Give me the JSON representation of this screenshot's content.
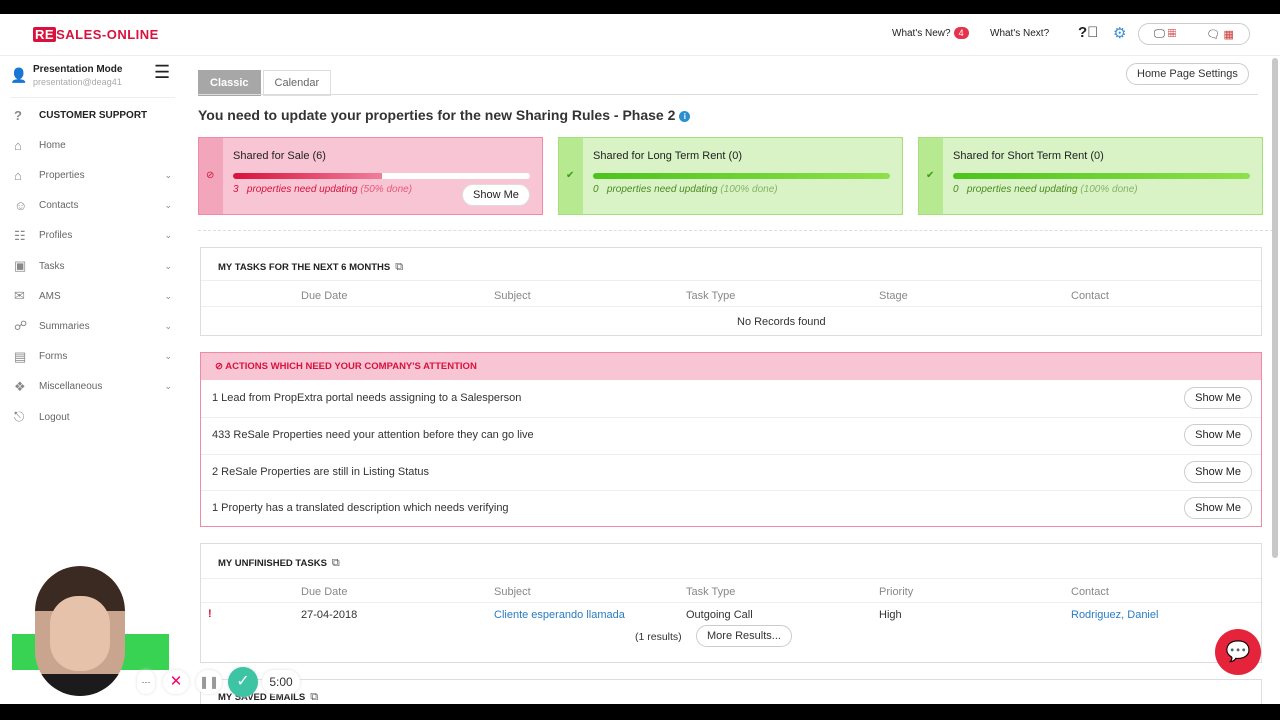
{
  "header": {
    "logo": "RESALES-ONLINE",
    "whats_new": "What's New?",
    "whats_new_count": "4",
    "whats_next": "What's Next?"
  },
  "user": {
    "name": "Presentation Mode",
    "email": "presentation@deag41"
  },
  "sidebar": {
    "items": [
      {
        "label": "CUSTOMER SUPPORT",
        "icon": "?"
      },
      {
        "label": "Home",
        "icon": "⌂"
      },
      {
        "label": "Properties",
        "icon": "⌂",
        "chevron": true
      },
      {
        "label": "Contacts",
        "icon": "☺",
        "chevron": true
      },
      {
        "label": "Profiles",
        "icon": "☷",
        "chevron": true
      },
      {
        "label": "Tasks",
        "icon": "▣",
        "chevron": true
      },
      {
        "label": "AMS",
        "icon": "✉",
        "chevron": true
      },
      {
        "label": "Summaries",
        "icon": "☍",
        "chevron": true
      },
      {
        "label": "Forms",
        "icon": "▤",
        "chevron": true
      },
      {
        "label": "Miscellaneous",
        "icon": "❖",
        "chevron": true
      },
      {
        "label": "Logout",
        "icon": "⎋"
      }
    ]
  },
  "tabs": [
    "Classic",
    "Calendar"
  ],
  "home_settings": "Home Page Settings",
  "title": "You need to update your properties for the new Sharing Rules - Phase 2",
  "cards": [
    {
      "title": "Shared for Sale (6)",
      "count": "3",
      "msg": "properties need updating",
      "pct": "(50% done)",
      "progress": 50,
      "button": "Show Me",
      "status": "pink"
    },
    {
      "title": "Shared for Long Term Rent (0)",
      "count": "0",
      "msg": "properties need updating",
      "pct": "(100% done)",
      "progress": 100,
      "status": "green"
    },
    {
      "title": "Shared for Short Term Rent (0)",
      "count": "0",
      "msg": "properties need updating",
      "pct": "(100% done)",
      "progress": 100,
      "status": "green"
    }
  ],
  "tasks": {
    "title": "MY TASKS FOR THE NEXT 6 MONTHS",
    "columns": [
      "Due Date",
      "Subject",
      "Task Type",
      "Stage",
      "Contact"
    ],
    "empty": "No Records found"
  },
  "actions": {
    "title": "ACTIONS WHICH NEED YOUR COMPANY'S ATTENTION",
    "button": "Show Me",
    "items": [
      "1 Lead from PropExtra portal needs assigning to a Salesperson",
      "433 ReSale Properties need your attention before they can go live",
      "2 ReSale Properties are still in Listing Status",
      "1 Property has a translated description which needs verifying"
    ]
  },
  "unfinished": {
    "title": "MY UNFINISHED TASKS",
    "columns": [
      "Due Date",
      "Subject",
      "Task Type",
      "Priority",
      "Contact"
    ],
    "rows": [
      {
        "flag": "!",
        "due": "27-04-2018",
        "subject": "Cliente esperando llamada",
        "type": "Outgoing Call",
        "priority": "High",
        "contact": "Rodriguez, Daniel"
      }
    ],
    "results": "(1  results)",
    "more": "More Results..."
  },
  "emails": {
    "title": "MY SAVED EMAILS"
  },
  "recorder": {
    "timer": "5:00"
  }
}
